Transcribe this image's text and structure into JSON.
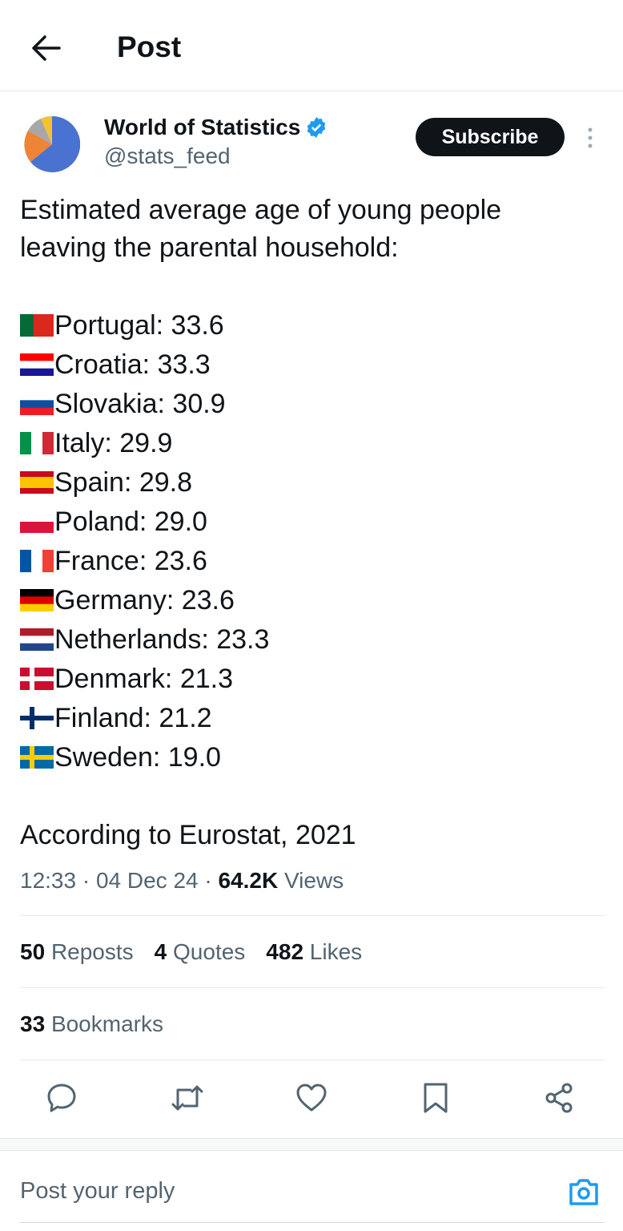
{
  "header": {
    "title": "Post"
  },
  "author": {
    "name": "World of Statistics",
    "handle": "@stats_feed",
    "subscribe": "Subscribe"
  },
  "post": {
    "intro": [
      "Estimated average age of young people",
      "leaving the parental household:"
    ],
    "lines": [
      "Portugal: 33.6",
      "Croatia: 33.3",
      "Slovakia: 30.9",
      "Italy: 29.9",
      "Spain: 29.8",
      "Poland: 29.0",
      "France: 23.6",
      "Germany: 23.6",
      "Netherlands: 23.3",
      "Denmark: 21.3",
      "Finland: 21.2",
      "Sweden: 19.0"
    ],
    "source": "According to Eurostat, 2021",
    "meta": "12:33 · 04 Dec 24 · ",
    "views": "64.2K",
    "views_label": "Views"
  },
  "stats": [
    {
      "count": "50",
      "label": "Reposts"
    },
    {
      "count": "4",
      "label": "Quotes"
    },
    {
      "count": "482",
      "label": "Likes"
    }
  ],
  "bookmarks": {
    "count": "33",
    "label": "Bookmarks"
  },
  "reply": {
    "placeholder": "Post your reply"
  }
}
